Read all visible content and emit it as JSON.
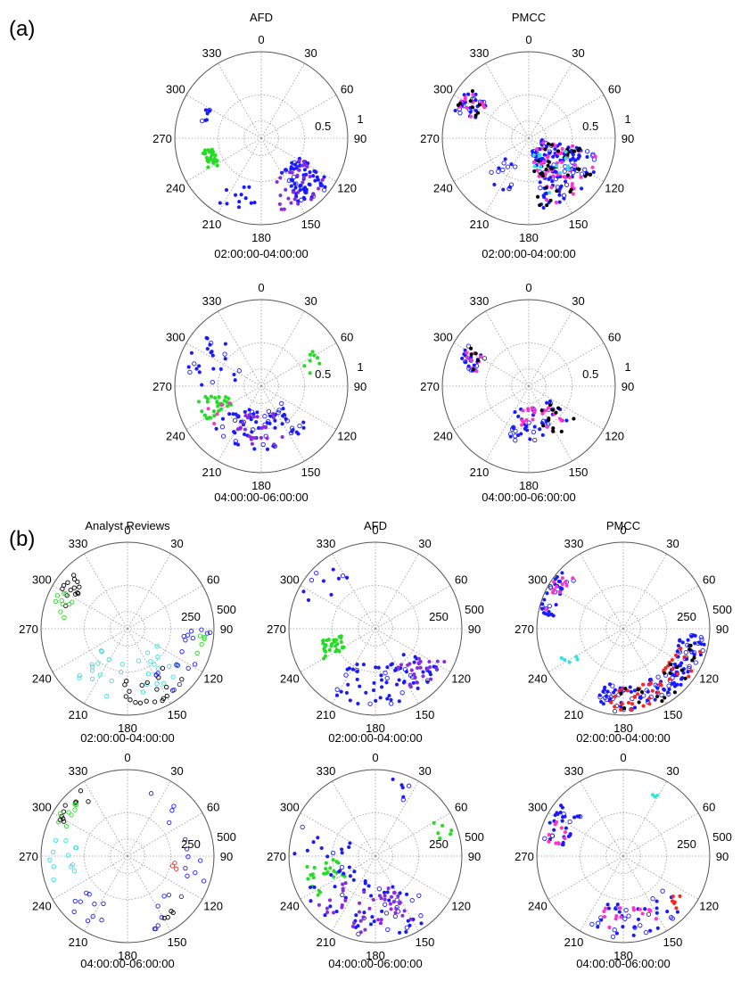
{
  "figure": {
    "panel_a_label": "(a)",
    "panel_b_label": "(b)"
  },
  "colors": {
    "blue": "#1a1aff",
    "purple": "#8a2be2",
    "green": "#22dd22",
    "magenta": "#ff33cc",
    "red": "#ff2222",
    "cyan": "#33e0e0",
    "black": "#000000",
    "grid": "#999999"
  },
  "chart_data": [
    {
      "type": "scatter",
      "projection": "polar",
      "title": "AFD",
      "time_range": "02:00:00-04:00:00",
      "theta_ticks": [
        "0",
        "30",
        "60",
        "90",
        "120",
        "150",
        "180",
        "210",
        "240",
        "270",
        "300",
        "330"
      ],
      "r_ticks": [
        "0.5",
        "1"
      ],
      "rlim": [
        0,
        1
      ],
      "grid": true,
      "clusters": [
        {
          "color": "green",
          "theta": [
            238,
            258
          ],
          "r": [
            0.55,
            0.72
          ],
          "n": 28
        },
        {
          "color": "blue",
          "theta": [
            285,
            300
          ],
          "r": [
            0.62,
            0.72
          ],
          "n": 8
        },
        {
          "color": "blue",
          "theta": [
            118,
            150
          ],
          "r": [
            0.45,
            0.95
          ],
          "n": 70
        },
        {
          "color": "purple",
          "theta": [
            118,
            165
          ],
          "r": [
            0.5,
            0.95
          ],
          "n": 30
        },
        {
          "color": "blue",
          "theta": [
            185,
            215
          ],
          "r": [
            0.55,
            0.9
          ],
          "n": 12
        }
      ]
    },
    {
      "type": "scatter",
      "projection": "polar",
      "title": "PMCC",
      "time_range": "02:00:00-04:00:00",
      "theta_ticks": [
        "0",
        "30",
        "60",
        "90",
        "120",
        "150",
        "180",
        "210",
        "240",
        "270",
        "300",
        "330"
      ],
      "r_ticks": [
        "0.5",
        "1"
      ],
      "rlim": [
        0,
        1
      ],
      "grid": true,
      "clusters": [
        {
          "color": "blue",
          "theta": [
            290,
            310
          ],
          "r": [
            0.62,
            0.92
          ],
          "n": 25
        },
        {
          "color": "magenta",
          "theta": [
            290,
            310
          ],
          "r": [
            0.62,
            0.92
          ],
          "n": 12
        },
        {
          "color": "black",
          "theta": [
            290,
            310
          ],
          "r": [
            0.62,
            0.92
          ],
          "n": 8
        },
        {
          "color": "blue",
          "theta": [
            100,
            170
          ],
          "r": [
            0.15,
            0.85
          ],
          "n": 120
        },
        {
          "color": "magenta",
          "theta": [
            100,
            170
          ],
          "r": [
            0.15,
            0.85
          ],
          "n": 45
        },
        {
          "color": "black",
          "theta": [
            100,
            175
          ],
          "r": [
            0.2,
            0.85
          ],
          "n": 35
        },
        {
          "color": "cyan",
          "theta": [
            110,
            170
          ],
          "r": [
            0.2,
            0.7
          ],
          "n": 12
        },
        {
          "color": "blue",
          "theta": [
            200,
            230
          ],
          "r": [
            0.35,
            0.7
          ],
          "n": 15
        }
      ]
    },
    {
      "type": "scatter",
      "projection": "polar",
      "title": "",
      "time_range": "04:00:00-06:00:00",
      "theta_ticks": [
        "0",
        "30",
        "60",
        "90",
        "120",
        "150",
        "180",
        "210",
        "240",
        "270",
        "300",
        "330"
      ],
      "r_ticks": [
        "0.5",
        "1"
      ],
      "rlim": [
        0,
        1
      ],
      "grid": true,
      "clusters": [
        {
          "color": "green",
          "theta": [
            235,
            260
          ],
          "r": [
            0.4,
            0.75
          ],
          "n": 30
        },
        {
          "color": "green",
          "theta": [
            55,
            75
          ],
          "r": [
            0.55,
            0.75
          ],
          "n": 8
        },
        {
          "color": "blue",
          "theta": [
            270,
            320
          ],
          "r": [
            0.3,
            0.9
          ],
          "n": 25
        },
        {
          "color": "blue",
          "theta": [
            130,
            230
          ],
          "r": [
            0.3,
            0.75
          ],
          "n": 70
        },
        {
          "color": "purple",
          "theta": [
            150,
            210
          ],
          "r": [
            0.35,
            0.7
          ],
          "n": 25
        },
        {
          "color": "magenta",
          "theta": [
            230,
            260
          ],
          "r": [
            0.4,
            0.7
          ],
          "n": 5
        }
      ]
    },
    {
      "type": "scatter",
      "projection": "polar",
      "title": "",
      "time_range": "04:00:00-06:00:00",
      "theta_ticks": [
        "0",
        "30",
        "60",
        "90",
        "120",
        "150",
        "180",
        "210",
        "240",
        "270",
        "300",
        "330"
      ],
      "r_ticks": [
        "0.5",
        "1"
      ],
      "rlim": [
        0,
        1
      ],
      "grid": true,
      "clusters": [
        {
          "color": "blue",
          "theta": [
            285,
            305
          ],
          "r": [
            0.6,
            0.85
          ],
          "n": 22
        },
        {
          "color": "magenta",
          "theta": [
            285,
            305
          ],
          "r": [
            0.6,
            0.85
          ],
          "n": 8
        },
        {
          "color": "black",
          "theta": [
            285,
            305
          ],
          "r": [
            0.6,
            0.85
          ],
          "n": 5
        },
        {
          "color": "blue",
          "theta": [
            125,
            210
          ],
          "r": [
            0.25,
            0.65
          ],
          "n": 45
        },
        {
          "color": "magenta",
          "theta": [
            130,
            200
          ],
          "r": [
            0.25,
            0.6
          ],
          "n": 20
        },
        {
          "color": "black",
          "theta": [
            125,
            160
          ],
          "r": [
            0.3,
            0.65
          ],
          "n": 12
        }
      ]
    },
    {
      "type": "scatter",
      "projection": "polar",
      "title": "Analyst Reviews",
      "time_range": "02:00:00-04:00:00",
      "theta_ticks": [
        "0",
        "30",
        "60",
        "90",
        "120",
        "150",
        "180",
        "210",
        "240",
        "270",
        "300",
        "330"
      ],
      "r_ticks": [
        "250",
        "500"
      ],
      "rlim": [
        0,
        500
      ],
      "grid": true,
      "clusters": [
        {
          "color": "black",
          "theta": [
            285,
            315
          ],
          "r": [
            350,
            470
          ],
          "n": 14,
          "open": true
        },
        {
          "color": "green",
          "theta": [
            280,
            300
          ],
          "r": [
            350,
            450
          ],
          "n": 10,
          "open": true
        },
        {
          "color": "cyan",
          "theta": [
            120,
            230
          ],
          "r": [
            180,
            420
          ],
          "n": 30,
          "open": true
        },
        {
          "color": "black",
          "theta": [
            130,
            185
          ],
          "r": [
            300,
            470
          ],
          "n": 20,
          "open": true
        },
        {
          "color": "blue",
          "theta": [
            90,
            160
          ],
          "r": [
            300,
            480
          ],
          "n": 18,
          "open": true
        },
        {
          "color": "green",
          "theta": [
            95,
            110
          ],
          "r": [
            380,
            450
          ],
          "n": 5,
          "open": true
        }
      ]
    },
    {
      "type": "scatter",
      "projection": "polar",
      "title": "AFD",
      "time_range": "02:00:00-04:00:00",
      "theta_ticks": [
        "0",
        "30",
        "60",
        "90",
        "120",
        "150",
        "180",
        "210",
        "240",
        "270",
        "300",
        "330"
      ],
      "r_ticks": [
        "250",
        "500"
      ],
      "rlim": [
        0,
        500
      ],
      "grid": true,
      "clusters": [
        {
          "color": "green",
          "theta": [
            238,
            258
          ],
          "r": [
            200,
            350
          ],
          "n": 30
        },
        {
          "color": "blue",
          "theta": [
            290,
            335
          ],
          "r": [
            300,
            470
          ],
          "n": 10
        },
        {
          "color": "blue",
          "theta": [
            120,
            215
          ],
          "r": [
            200,
            450
          ],
          "n": 70
        },
        {
          "color": "purple",
          "theta": [
            115,
            150
          ],
          "r": [
            250,
            450
          ],
          "n": 25
        }
      ]
    },
    {
      "type": "scatter",
      "projection": "polar",
      "title": "PMCC",
      "time_range": "02:00:00-04:00:00",
      "theta_ticks": [
        "0",
        "30",
        "60",
        "90",
        "120",
        "150",
        "180",
        "210",
        "240",
        "270",
        "300",
        "330"
      ],
      "r_ticks": [
        "250",
        "500"
      ],
      "rlim": [
        0,
        500
      ],
      "grid": true,
      "clusters": [
        {
          "color": "blue",
          "theta": [
            280,
            315
          ],
          "r": [
            400,
            490
          ],
          "n": 30
        },
        {
          "color": "magenta",
          "theta": [
            280,
            315
          ],
          "r": [
            400,
            490
          ],
          "n": 12
        },
        {
          "color": "blue",
          "theta": [
            95,
            200
          ],
          "r": [
            330,
            480
          ],
          "n": 130
        },
        {
          "color": "red",
          "theta": [
            100,
            190
          ],
          "r": [
            330,
            480
          ],
          "n": 40
        },
        {
          "color": "black",
          "theta": [
            100,
            185
          ],
          "r": [
            330,
            480
          ],
          "n": 20
        },
        {
          "color": "cyan",
          "theta": [
            230,
            245
          ],
          "r": [
            300,
            400
          ],
          "n": 5
        }
      ]
    },
    {
      "type": "scatter",
      "projection": "polar",
      "title": "",
      "time_range": "04:00:00-06:00:00",
      "theta_ticks": [
        "0",
        "30",
        "60",
        "90",
        "120",
        "150",
        "180",
        "210",
        "240",
        "270",
        "300",
        "330"
      ],
      "r_ticks": [
        "250",
        "500"
      ],
      "rlim": [
        0,
        500
      ],
      "grid": true,
      "clusters": [
        {
          "color": "black",
          "theta": [
            295,
            325
          ],
          "r": [
            380,
            470
          ],
          "n": 10,
          "open": true
        },
        {
          "color": "green",
          "theta": [
            295,
            315
          ],
          "r": [
            380,
            460
          ],
          "n": 8,
          "open": true
        },
        {
          "color": "cyan",
          "theta": [
            250,
            290
          ],
          "r": [
            300,
            450
          ],
          "n": 12,
          "open": true
        },
        {
          "color": "blue",
          "theta": [
            20,
            160
          ],
          "r": [
            300,
            470
          ],
          "n": 20,
          "open": true
        },
        {
          "color": "blue",
          "theta": [
            200,
            240
          ],
          "r": [
            300,
            450
          ],
          "n": 10,
          "open": true
        },
        {
          "color": "red",
          "theta": [
            95,
            105
          ],
          "r": [
            250,
            300
          ],
          "n": 3,
          "open": true
        },
        {
          "color": "black",
          "theta": [
            140,
            150
          ],
          "r": [
            400,
            450
          ],
          "n": 4,
          "open": true
        }
      ]
    },
    {
      "type": "scatter",
      "projection": "polar",
      "title": "",
      "time_range": "04:00:00-06:00:00",
      "theta_ticks": [
        "0",
        "30",
        "60",
        "90",
        "120",
        "150",
        "180",
        "210",
        "240",
        "270",
        "300",
        "330"
      ],
      "r_ticks": [
        "250",
        "500"
      ],
      "rlim": [
        0,
        500
      ],
      "grid": true,
      "clusters": [
        {
          "color": "green",
          "theta": [
            235,
            265
          ],
          "r": [
            200,
            420
          ],
          "n": 25
        },
        {
          "color": "green",
          "theta": [
            60,
            75
          ],
          "r": [
            350,
            480
          ],
          "n": 6
        },
        {
          "color": "blue",
          "theta": [
            130,
            300
          ],
          "r": [
            150,
            480
          ],
          "n": 70
        },
        {
          "color": "purple",
          "theta": [
            150,
            230
          ],
          "r": [
            200,
            450
          ],
          "n": 45
        },
        {
          "color": "blue",
          "theta": [
            0,
            40
          ],
          "r": [
            350,
            480
          ],
          "n": 6
        }
      ]
    },
    {
      "type": "scatter",
      "projection": "polar",
      "title": "",
      "time_range": "04:00:00-06:00:00",
      "theta_ticks": [
        "0",
        "30",
        "60",
        "90",
        "120",
        "150",
        "180",
        "210",
        "240",
        "270",
        "300",
        "330"
      ],
      "r_ticks": [
        "250",
        "500"
      ],
      "rlim": [
        0,
        500
      ],
      "grid": true,
      "clusters": [
        {
          "color": "blue",
          "theta": [
            280,
            315
          ],
          "r": [
            330,
            470
          ],
          "n": 30
        },
        {
          "color": "magenta",
          "theta": [
            280,
            310
          ],
          "r": [
            350,
            450
          ],
          "n": 10
        },
        {
          "color": "blue",
          "theta": [
            125,
            210
          ],
          "r": [
            280,
            470
          ],
          "n": 40
        },
        {
          "color": "magenta",
          "theta": [
            150,
            200
          ],
          "r": [
            300,
            420
          ],
          "n": 15
        },
        {
          "color": "red",
          "theta": [
            125,
            140
          ],
          "r": [
            350,
            450
          ],
          "n": 6
        },
        {
          "color": "cyan",
          "theta": [
            15,
            30
          ],
          "r": [
            380,
            450
          ],
          "n": 3
        }
      ]
    }
  ]
}
